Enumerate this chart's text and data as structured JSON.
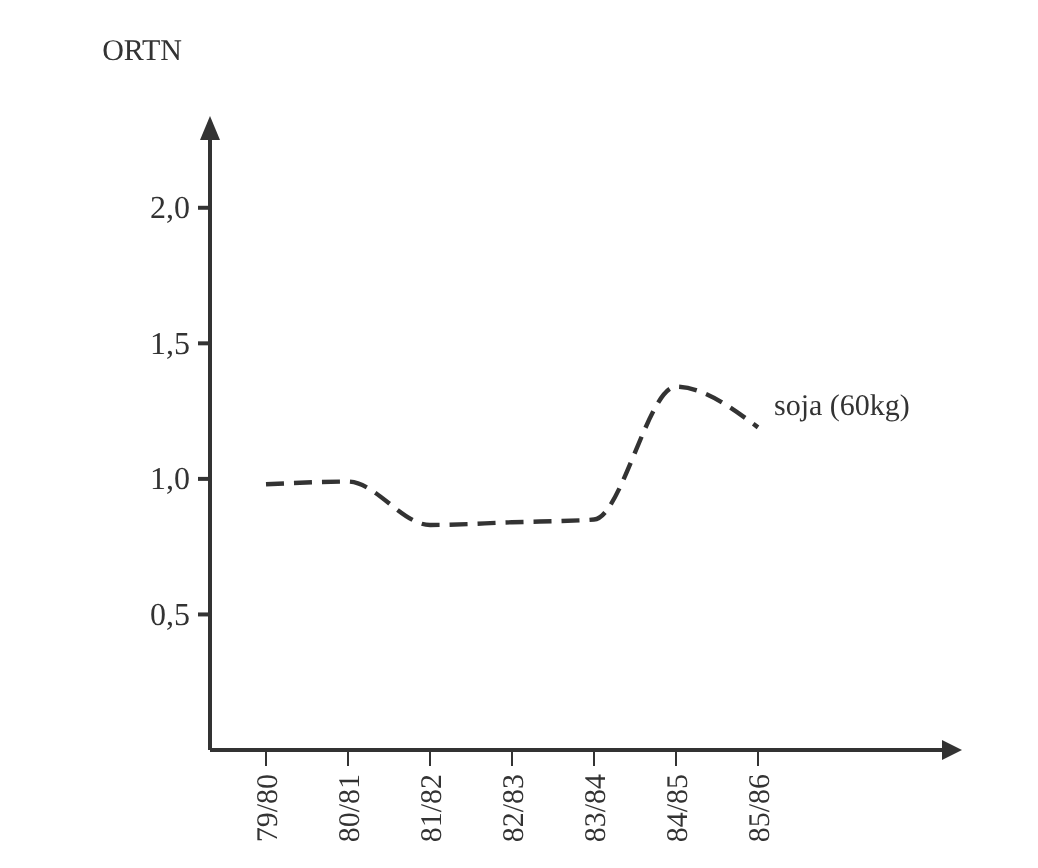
{
  "chart_data": {
    "type": "line",
    "ylabel": "ORTN",
    "categories": [
      "79/80",
      "80/81",
      "81/82",
      "82/83",
      "83/84",
      "84/85",
      "85/86"
    ],
    "series": [
      {
        "name": "soja (60kg)",
        "color": "#333333",
        "values": [
          0.98,
          0.99,
          0.83,
          0.84,
          0.85,
          1.34,
          1.19
        ]
      }
    ],
    "ylim": [
      0,
      2.25
    ],
    "yticks": [
      {
        "value": 0.5,
        "label": "0,5"
      },
      {
        "value": 1,
        "label": "1,0"
      },
      {
        "value": 1.5,
        "label": "1,5"
      },
      {
        "value": 2,
        "label": "2,0"
      }
    ],
    "line_style": "dashed",
    "marker": "none",
    "grid": false,
    "legend": false
  }
}
